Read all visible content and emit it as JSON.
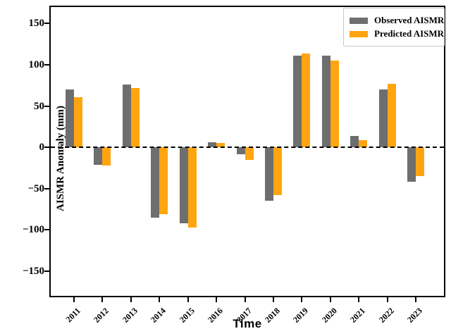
{
  "figure": {
    "x_axis_title": "Time",
    "y_axis_title": "AISMR Anomaly (mm)"
  },
  "chart_data": {
    "type": "bar",
    "title": "",
    "xlabel": "Time",
    "ylabel": "AISMR Anomaly (mm)",
    "categories": [
      "2011",
      "2012",
      "2013",
      "2014",
      "2015",
      "2016",
      "2017",
      "2018",
      "2019",
      "2020",
      "2021",
      "2022",
      "2023"
    ],
    "series": [
      {
        "name": "Observed AISMR",
        "color": "#6e6e6e",
        "values": [
          70,
          -21,
          76,
          -85,
          -92,
          6,
          -8,
          -65,
          111,
          111,
          14,
          70,
          -42
        ]
      },
      {
        "name": "Predicted AISMR",
        "color": "#ffa510",
        "values": [
          61,
          -22,
          72,
          -81,
          -97,
          5,
          -15,
          -58,
          114,
          105,
          9,
          77,
          -35
        ]
      }
    ],
    "yticks": [
      150,
      100,
      50,
      0,
      -50,
      -100,
      -150
    ],
    "ylim": [
      -180,
      170
    ],
    "zero_line": true,
    "grid": false,
    "legend_position": "upper right",
    "legend": [
      {
        "label": "Observed AISMR",
        "color": "#6e6e6e"
      },
      {
        "label": "Predicted AISMR",
        "color": "#ffa510"
      }
    ]
  }
}
